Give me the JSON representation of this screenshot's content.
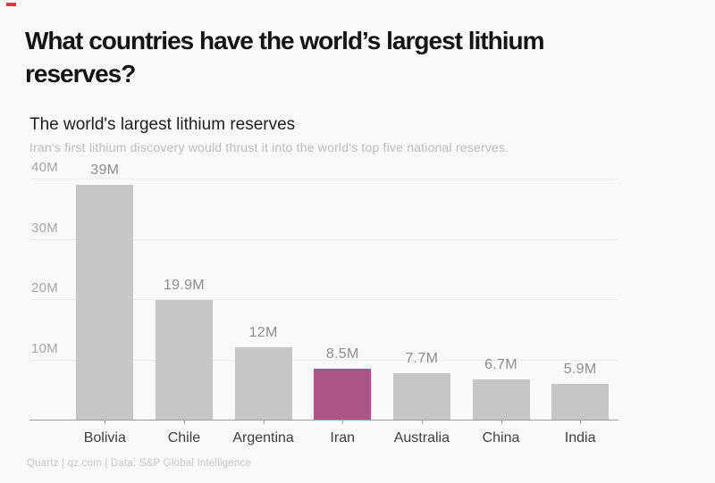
{
  "page": {
    "background": "#f9f9f8",
    "brand_mark_color": "#e8392c"
  },
  "header": {
    "title": "What countries have the world’s largest lithium reserves?"
  },
  "chart_data": {
    "type": "bar",
    "title": "The world's largest lithium reserves",
    "subtitle": "Iran's first lithium discovery would thrust it into the world's top five national reserves.",
    "categories": [
      "Bolivia",
      "Chile",
      "Argentina",
      "Iran",
      "Australia",
      "China",
      "India"
    ],
    "values": [
      39,
      19.9,
      12,
      8.5,
      7.7,
      6.7,
      5.9
    ],
    "value_labels": [
      "39M",
      "19.9M",
      "12M",
      "8.5M",
      "7.7M",
      "6.7M",
      "5.9M"
    ],
    "value_unit": "M",
    "highlight_category": "Iran",
    "highlight_index": 3,
    "ylim": [
      0,
      40
    ],
    "yticks": [
      {
        "label": "10M",
        "value": 10
      },
      {
        "label": "20M",
        "value": 20
      },
      {
        "label": "30M",
        "value": 30
      },
      {
        "label": "40M",
        "value": 40
      }
    ],
    "grid": true,
    "legend": false,
    "xlabel": "",
    "ylabel": "",
    "colors": {
      "bar": "#c6c6c6",
      "highlight": "#ab5485",
      "gridline": "#ebebea",
      "axis": "#9e9e9e"
    }
  },
  "footer": {
    "credit": "Quartz | qz.com | Data: S&P Global Intelligence"
  }
}
